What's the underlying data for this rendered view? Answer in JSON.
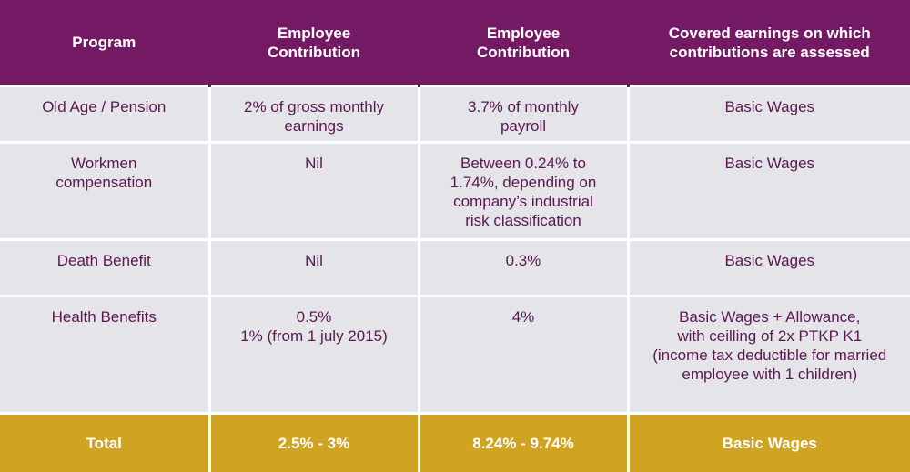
{
  "header": {
    "program": "Program",
    "employee_contribution": [
      "Employee",
      "Contribution"
    ],
    "employer_contribution": [
      "Employee",
      "Contribution"
    ],
    "covered_earnings": [
      "Covered earnings on which",
      "contributions are assessed"
    ]
  },
  "rows": [
    {
      "program": [
        "Old Age / Pension"
      ],
      "employee": [
        "2% of gross monthly",
        "earnings"
      ],
      "employer": [
        "3.7% of monthly",
        "payroll"
      ],
      "covered": [
        "Basic Wages"
      ]
    },
    {
      "program": [
        "Workmen",
        "compensation"
      ],
      "employee": [
        "Nil"
      ],
      "employer": [
        "Between 0.24% to",
        "1.74%, depending on",
        "company’s industrial",
        "risk classification"
      ],
      "covered": [
        "Basic Wages"
      ]
    },
    {
      "program": [
        "Death Benefit"
      ],
      "employee": [
        "Nil"
      ],
      "employer": [
        "0.3%"
      ],
      "covered": [
        "Basic Wages"
      ]
    },
    {
      "program": [
        "Health Benefits"
      ],
      "employee": [
        "0.5%",
        "1% (from 1 july 2015)"
      ],
      "employer": [
        "4%"
      ],
      "covered": [
        "Basic Wages + Allowance,",
        "with ceilling of 2x PTKP K1",
        "(income tax deductible for married",
        "employee with 1 children)"
      ]
    }
  ],
  "total": {
    "program": "Total",
    "employee": "2.5% - 3%",
    "employer": "8.24% - 9.74%",
    "covered": "Basic Wages"
  },
  "colors": {
    "header_bg": "#741a65",
    "body_bg": "#e5e4e9",
    "body_text": "#5a1850",
    "total_bg": "#d0a321"
  }
}
